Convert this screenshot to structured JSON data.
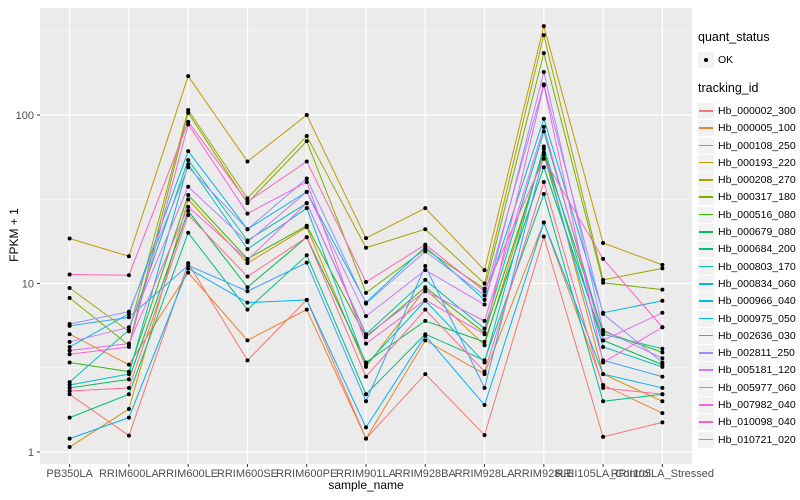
{
  "figure": {
    "panel_background": "#EBEBEB",
    "gridline_color": "#FFFFFF",
    "tick_label_color": "#4D4D4D",
    "axis_title_color": "#000000",
    "point_color": "#000000",
    "legend_key_background": "#F2F2F2"
  },
  "legend": {
    "quant_status": {
      "title": "quant_status",
      "items": [
        {
          "label": "OK",
          "marker": "black-point"
        }
      ]
    },
    "tracking_id": {
      "title": "tracking_id"
    }
  },
  "chart_data": {
    "type": "line",
    "title": "",
    "xlabel": "sample_name",
    "ylabel": "FPKM + 1",
    "y_scale": "log10",
    "y_ticks": [
      1,
      10,
      100
    ],
    "y_minor_ticks": [
      3.1623,
      31.623,
      316.23
    ],
    "ylim": [
      0.93,
      430
    ],
    "grid": true,
    "legend_position": "right",
    "marker": "point",
    "categories": [
      "PB350LA",
      "RRIM600LA",
      "RRIM600LE",
      "RRIM600SE",
      "RRIM600PE",
      "RRIM901LA",
      "RRIM928BA",
      "RRIM928LA",
      "RRIM928LE",
      "RRII105LA_Control",
      "RRII105LA_Stressed"
    ],
    "series": [
      {
        "name": "Hb_000002_300",
        "color": "#F8766D",
        "values": [
          2.2,
          1.25,
          13.2,
          3.5,
          8.0,
          1.2,
          2.9,
          1.26,
          19,
          1.23,
          1.5
        ]
      },
      {
        "name": "Hb_000005_100",
        "color": "#EA8331",
        "values": [
          5.0,
          3.3,
          11.6,
          4.6,
          7.0,
          1.2,
          4.6,
          2.9,
          23,
          2.5,
          1.7
        ]
      },
      {
        "name": "Hb_000108_250",
        "color": "#D89000",
        "values": [
          1.07,
          1.8,
          31.5,
          13.2,
          21.6,
          3.2,
          9.3,
          4.3,
          63,
          2.9,
          2.0
        ]
      },
      {
        "name": "Hb_000193_220",
        "color": "#C09B00",
        "values": [
          18.5,
          14.5,
          170,
          53,
          100,
          18.6,
          28,
          12,
          337,
          17.4,
          12.9
        ]
      },
      {
        "name": "Hb_000208_270",
        "color": "#A3A500",
        "values": [
          9.4,
          5.2,
          107,
          32,
          75,
          16.3,
          21,
          10,
          298,
          10.5,
          12.3
        ]
      },
      {
        "name": "Hb_000317_180",
        "color": "#7CAE00",
        "values": [
          8.2,
          4.3,
          103,
          30,
          70,
          8.8,
          16,
          9.3,
          233,
          10.1,
          9.2
        ]
      },
      {
        "name": "Hb_000516_080",
        "color": "#39B600",
        "values": [
          3.4,
          3.0,
          33.5,
          14,
          22,
          4.8,
          9.5,
          5.1,
          60,
          5.2,
          3.9
        ]
      },
      {
        "name": "Hb_000679_080",
        "color": "#00BB4E",
        "values": [
          2.4,
          2.7,
          27,
          9.5,
          18.8,
          3.4,
          6.0,
          4.5,
          49,
          4.6,
          3.3
        ]
      },
      {
        "name": "Hb_000684_200",
        "color": "#00BF7D",
        "values": [
          1.6,
          2.2,
          20,
          7.0,
          14.7,
          2.2,
          5.0,
          3.5,
          34,
          2.0,
          2.2
        ]
      },
      {
        "name": "Hb_000803_170",
        "color": "#00C1A3",
        "values": [
          2.6,
          5.3,
          54,
          18,
          30,
          5.0,
          10.5,
          5.4,
          80,
          5.0,
          4.1
        ]
      },
      {
        "name": "Hb_000834_060",
        "color": "#00BFC4",
        "values": [
          2.5,
          2.9,
          51,
          16,
          28,
          3.3,
          7.9,
          3.4,
          65,
          4.2,
          3.2
        ]
      },
      {
        "name": "Hb_000966_040",
        "color": "#00BAE0",
        "values": [
          4.2,
          6.6,
          61,
          21,
          35,
          7.7,
          16.5,
          8.0,
          95,
          6.7,
          7.9
        ]
      },
      {
        "name": "Hb_000975_050",
        "color": "#00B0F6",
        "values": [
          1.2,
          1.6,
          12.3,
          7.7,
          8.0,
          1.4,
          4.9,
          1.9,
          23,
          2.9,
          2.4
        ]
      },
      {
        "name": "Hb_002636_030",
        "color": "#35A2FF",
        "values": [
          5.6,
          6.3,
          12.8,
          9.0,
          13.3,
          2.0,
          12.7,
          2.4,
          58,
          3.5,
          2.8
        ]
      },
      {
        "name": "Hb_002811_250",
        "color": "#9590FF",
        "values": [
          5.75,
          6.8,
          49,
          21,
          42,
          7.6,
          15.5,
          8.5,
          152,
          6.6,
          3.4
        ]
      },
      {
        "name": "Hb_005181_120",
        "color": "#C77CFF",
        "values": [
          4.5,
          5.5,
          37.5,
          17.6,
          35,
          6.4,
          12.0,
          7.5,
          180,
          5.3,
          3.6
        ]
      },
      {
        "name": "Hb_005977_060",
        "color": "#E76BF3",
        "values": [
          4.0,
          4.4,
          28.5,
          13.8,
          30,
          4.9,
          9.0,
          6.0,
          85,
          4.6,
          6.7
        ]
      },
      {
        "name": "Hb_007982_040",
        "color": "#FA62DB",
        "values": [
          3.8,
          4.2,
          88,
          26,
          40,
          4.4,
          8.0,
          5.0,
          150,
          3.4,
          5.5
        ]
      },
      {
        "name": "Hb_010098_040",
        "color": "#FF62BC",
        "values": [
          11.3,
          11.2,
          91,
          30.5,
          53,
          10.2,
          17,
          9.0,
          55,
          14.0,
          5.5
        ]
      },
      {
        "name": "Hb_010721_020",
        "color": "#FF6A98",
        "values": [
          2.3,
          2.4,
          25.5,
          11,
          18.8,
          2.8,
          7.0,
          3.0,
          40,
          2.4,
          2.2
        ]
      }
    ]
  }
}
